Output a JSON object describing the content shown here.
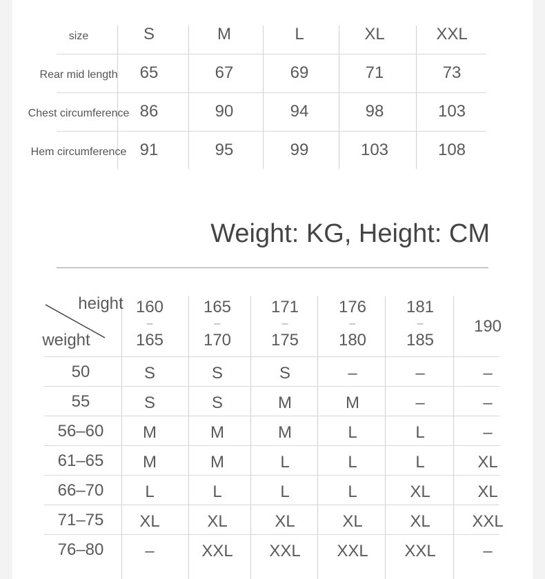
{
  "size_table": {
    "corner_label": "size",
    "sizes": [
      "S",
      "M",
      "L",
      "XL",
      "XXL"
    ],
    "rows": [
      {
        "label": "Rear mid length",
        "values": [
          "65",
          "67",
          "69",
          "71",
          "73"
        ]
      },
      {
        "label": "Chest circumference",
        "values": [
          "86",
          "90",
          "94",
          "98",
          "103"
        ]
      },
      {
        "label": "Hem circumference",
        "values": [
          "91",
          "95",
          "99",
          "103",
          "108"
        ]
      }
    ]
  },
  "title": "Weight: KG, Height: CM",
  "fit_table": {
    "corner_top": "height",
    "corner_bottom": "weight",
    "heights": [
      {
        "from": "160",
        "dash": "–",
        "to": "165"
      },
      {
        "from": "165",
        "dash": "–",
        "to": "170"
      },
      {
        "from": "171",
        "dash": "–",
        "to": "175"
      },
      {
        "from": "176",
        "dash": "–",
        "to": "180"
      },
      {
        "from": "181",
        "dash": "–",
        "to": "185"
      },
      {
        "single": "190"
      }
    ],
    "rows": [
      {
        "weight": "50",
        "values": [
          "S",
          "S",
          "S",
          "–",
          "–",
          "–"
        ]
      },
      {
        "weight": "55",
        "values": [
          "S",
          "S",
          "M",
          "M",
          "–",
          "–"
        ]
      },
      {
        "weight": "56–60",
        "values": [
          "M",
          "M",
          "M",
          "L",
          "L",
          "–"
        ]
      },
      {
        "weight": "61–65",
        "values": [
          "M",
          "M",
          "L",
          "L",
          "L",
          "XL"
        ]
      },
      {
        "weight": "66–70",
        "values": [
          "L",
          "L",
          "L",
          "L",
          "XL",
          "XL"
        ]
      },
      {
        "weight": "71–75",
        "values": [
          "XL",
          "XL",
          "XL",
          "XL",
          "XL",
          "XXL"
        ]
      },
      {
        "weight": "76–80",
        "values": [
          "–",
          "XXL",
          "XXL",
          "XXL",
          "XXL",
          "–"
        ]
      }
    ]
  }
}
